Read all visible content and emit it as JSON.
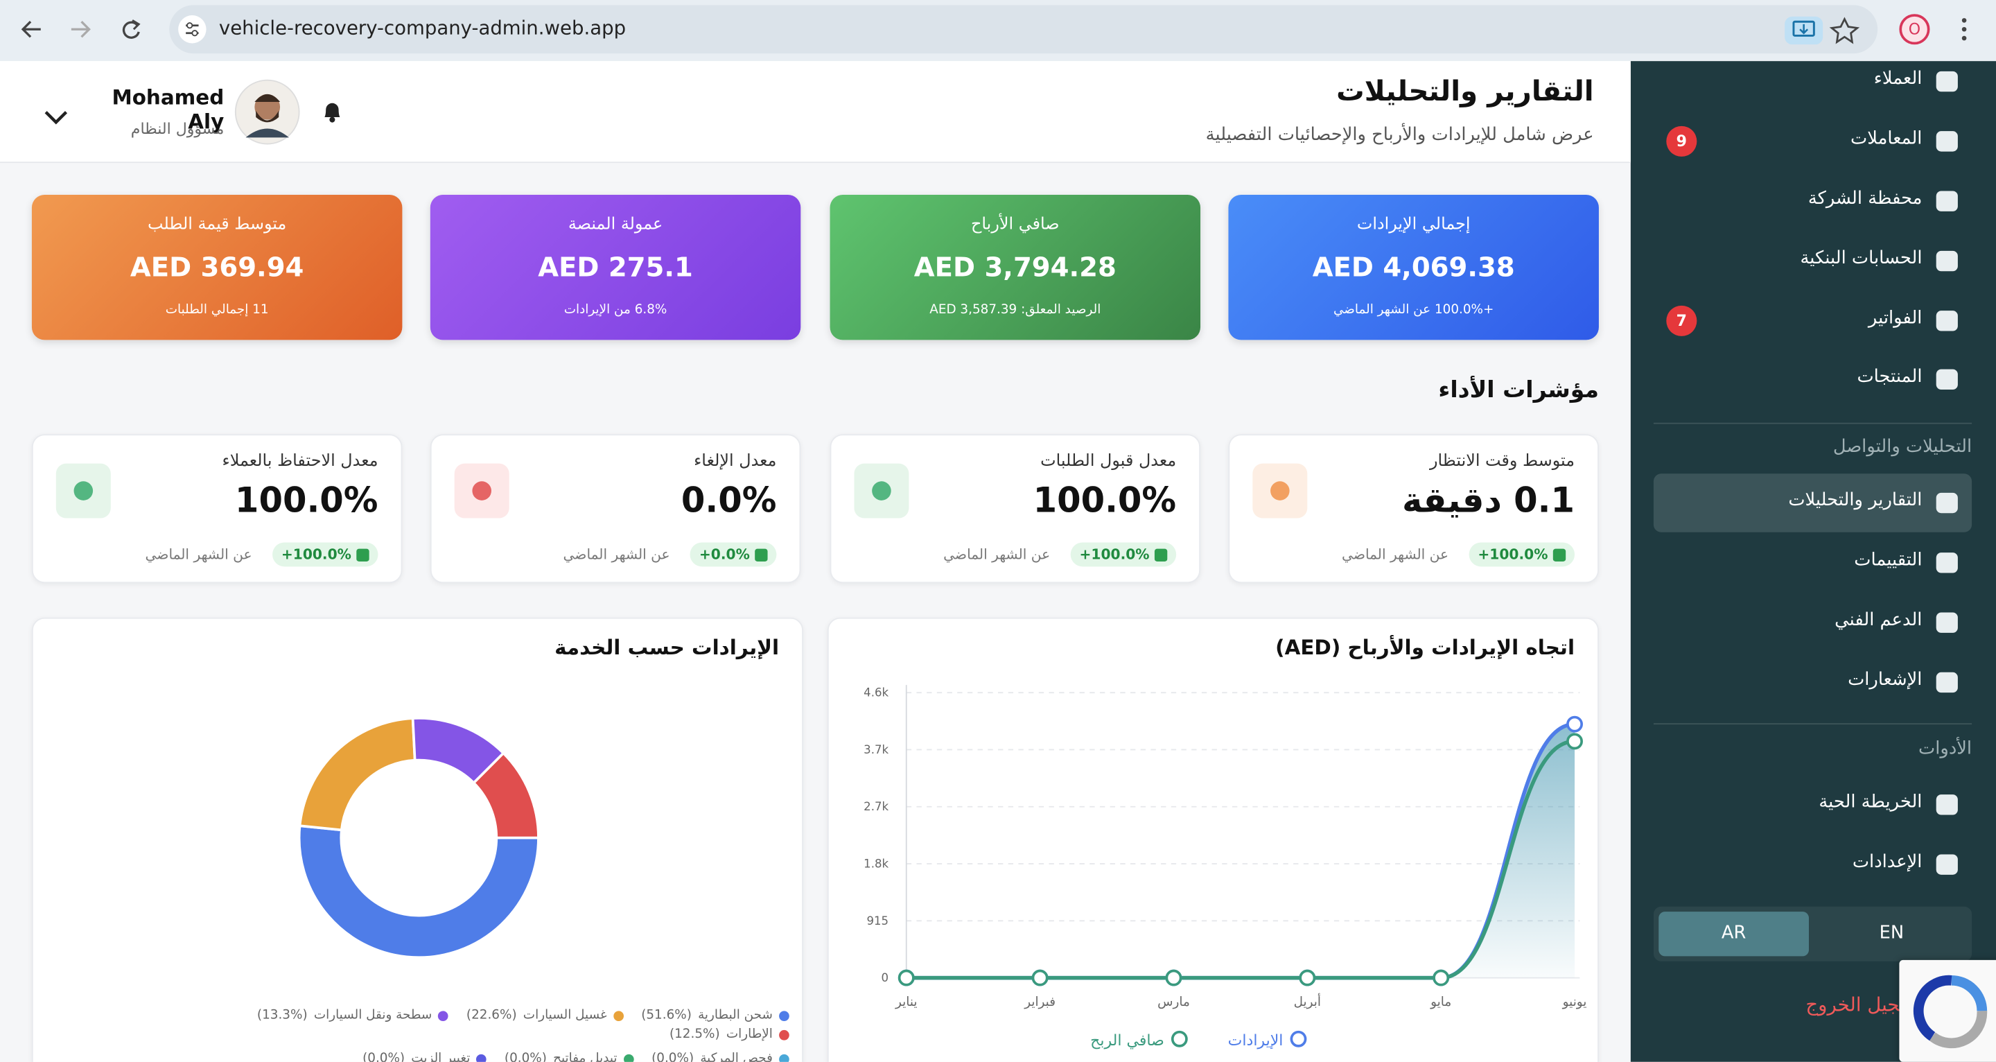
{
  "browser": {
    "url": "vehicle-recovery-company-admin.web.app",
    "profile": "O"
  },
  "sidebar": {
    "items": [
      {
        "label": "العملاء"
      },
      {
        "label": "المعاملات",
        "badge": 9
      },
      {
        "label": "محفظة الشركة"
      },
      {
        "label": "الحسابات البنكية"
      },
      {
        "label": "الفواتير",
        "badge": 7
      },
      {
        "label": "المنتجات"
      }
    ],
    "analytics_title": "التحليلات والتواصل",
    "analytics_items": [
      {
        "label": "التقارير والتحليلات",
        "active": true
      },
      {
        "label": "التقييمات"
      },
      {
        "label": "الدعم الفني"
      },
      {
        "label": "الإشعارات"
      }
    ],
    "tools_title": "الأدوات",
    "tools_items": [
      {
        "label": "الخريطة الحية"
      },
      {
        "label": "الإعدادات"
      }
    ],
    "languages": [
      "AR",
      "EN"
    ],
    "active_language": "AR",
    "logout": "تسجيل الخروج"
  },
  "header": {
    "title": "التقارير والتحليلات",
    "subtitle": "عرض شامل للإيرادات والأرباح والإحصائيات التفصيلية",
    "user_name": "Mohamed Aly",
    "user_role": "مسؤول النظام"
  },
  "kpis": [
    {
      "title": "إجمالي الإيرادات",
      "value": "AED 4,069.38",
      "note": "+100.0% عن الشهر الماضي"
    },
    {
      "title": "صافي الأرباح",
      "value": "AED 3,794.28",
      "note": "الرصيد المعلق: AED 3,587.39"
    },
    {
      "title": "عمولة المنصة",
      "value": "AED 275.1",
      "note": "6.8% من الإيرادات"
    },
    {
      "title": "متوسط قيمة الطلب",
      "value": "AED 369.94",
      "note": "11 إجمالي الطلبات"
    }
  ],
  "performance": {
    "title": "مؤشرات الأداء",
    "metrics": [
      {
        "title": "متوسط وقت الانتظار",
        "value": "0.1 دقيقة",
        "change": "+100.0%",
        "period": "عن الشهر الماضي"
      },
      {
        "title": "معدل قبول الطلبات",
        "value": "100.0%",
        "change": "+100.0%",
        "period": "عن الشهر الماضي"
      },
      {
        "title": "معدل الإلغاء",
        "value": "0.0%",
        "change": "+0.0%",
        "period": "عن الشهر الماضي"
      },
      {
        "title": "معدل الاحتفاظ بالعملاء",
        "value": "100.0%",
        "change": "+100.0%",
        "period": "عن الشهر الماضي"
      }
    ]
  },
  "chart_data": [
    {
      "type": "line",
      "title": "اتجاه الإيرادات والأرباح (AED)",
      "categories": [
        "يناير",
        "فبراير",
        "مارس",
        "أبريل",
        "مايو",
        "يونيو"
      ],
      "series": [
        {
          "name": "الإيرادات",
          "color": "#4f7de8",
          "values": [
            0,
            0,
            0,
            0,
            0,
            4069.38
          ]
        },
        {
          "name": "صافي الربح",
          "color": "#3a9a7e",
          "values": [
            0,
            0,
            0,
            0,
            0,
            3794.28
          ]
        }
      ],
      "ylim": [
        0,
        4575
      ],
      "yticks": [
        0,
        915,
        {
          "value": 1830,
          "label": "1.8k"
        },
        {
          "value": 2745,
          "label": "2.7k"
        },
        {
          "value": 3660,
          "label": "3.7k"
        },
        {
          "value": 4575,
          "label": "4.6k"
        }
      ],
      "grid": true
    },
    {
      "type": "pie",
      "title": "الإيرادات حسب الخدمة",
      "categories": [
        "شحن البطارية",
        "غسيل السيارات",
        "سطحة ونقل السيارات",
        "الإطارات",
        "فحص المركبة",
        "تبديل مفاتيح",
        "تغيير الزيت"
      ],
      "values": [
        51.6,
        22.6,
        13.3,
        12.5,
        0.0,
        0.0,
        0.0
      ],
      "value_labels": [
        "(51.6%)",
        "(22.6%)",
        "(13.3%)",
        "(12.5%)",
        "(0.0%)",
        "(0.0%)",
        "(0.0%)"
      ],
      "colors": [
        "#4f7de8",
        "#e8a23a",
        "#8455e6",
        "#e04e4e",
        "#4aa8d8",
        "#3aaa6e",
        "#5b5be0"
      ],
      "donut": true
    }
  ]
}
